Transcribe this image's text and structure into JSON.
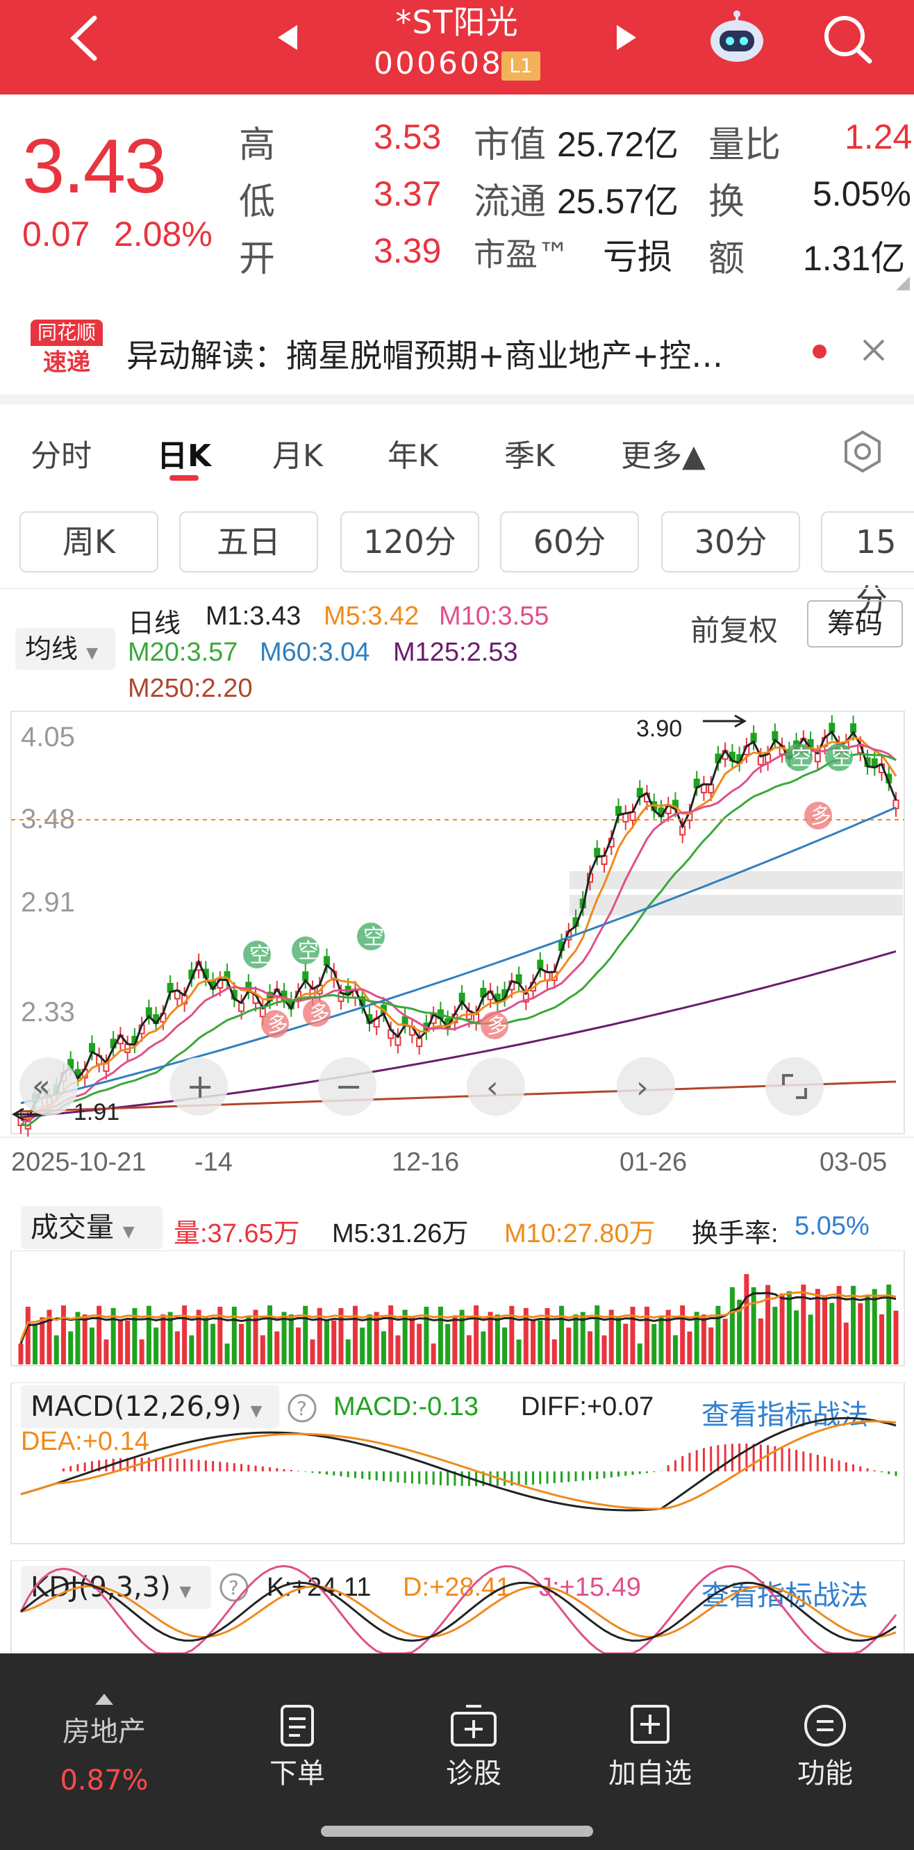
{
  "header": {
    "title": "*ST阳光",
    "code": "000608",
    "level": "L1"
  },
  "quote": {
    "price": "3.43",
    "change": "0.07",
    "pct": "2.08%",
    "rows": [
      {
        "l1": "高",
        "v1": "3.53",
        "l2": "市值",
        "v2": "25.72亿",
        "l3": "量比",
        "v3": "1.24"
      },
      {
        "l1": "低",
        "v1": "3.37",
        "l2": "流通",
        "v2": "25.57亿",
        "l3": "换",
        "v3": "5.05%"
      },
      {
        "l1": "开",
        "v1": "3.39",
        "l2": "市盈™",
        "v2": "亏损",
        "l3": "额",
        "v3": "1.31亿"
      }
    ]
  },
  "news": {
    "logo1": "同花顺",
    "logo2": "速递",
    "text": "异动解读：摘星脱帽预期+商业地产+控…"
  },
  "periods": {
    "tabs": [
      "分时",
      "日K",
      "月K",
      "年K",
      "季K",
      "更多▲"
    ],
    "active": 1
  },
  "sub_periods": [
    "周K",
    "五日",
    "120分",
    "60分",
    "30分",
    "15分"
  ],
  "ma": {
    "ma_btn": "均线",
    "fq": "前复权",
    "chip": "筹码",
    "day": "日线",
    "m1": "M1:3.43",
    "m5": "M5:3.42",
    "m10": "M10:3.55",
    "m20": "M20:3.57",
    "m60": "M60:3.04",
    "m125": "M125:2.53",
    "m250": "M250:2.20"
  },
  "price_axis": [
    "4.05",
    "3.48",
    "2.91",
    "2.33"
  ],
  "high_mark": "3.90",
  "low_mark": "1.91",
  "date_axis": [
    "2025-10-21",
    "-14",
    "12-16",
    "01-26",
    "03-05"
  ],
  "volume": {
    "btn": "成交量",
    "v": "量:37.65万",
    "m5": "M5:31.26万",
    "m10": "M10:27.80万",
    "turn_label": "换手率:",
    "turn": "5.05%"
  },
  "macd": {
    "btn": "MACD(12,26,9)",
    "macd": "MACD:-0.13",
    "diff": "DIFF:+0.07",
    "dea": "DEA:+0.14",
    "link": "查看指标战法"
  },
  "kdj": {
    "btn": "KDJ(9,3,3)",
    "k": "K:+24.11",
    "d": "D:+28.41",
    "j": "J:+15.49",
    "link": "查看指标战法"
  },
  "nav": {
    "sector": "房地产",
    "sector_pct": "0.87%",
    "items": [
      "下单",
      "诊股",
      "加自选",
      "功能"
    ]
  },
  "colors": {
    "red": "#e8343e",
    "green": "#1fa31f",
    "orange": "#f08a1c",
    "pink": "#e0508a",
    "blue": "#2f7fc0",
    "purple": "#6a1c6a",
    "brown": "#b0452c",
    "link": "#2f7fd0"
  }
}
